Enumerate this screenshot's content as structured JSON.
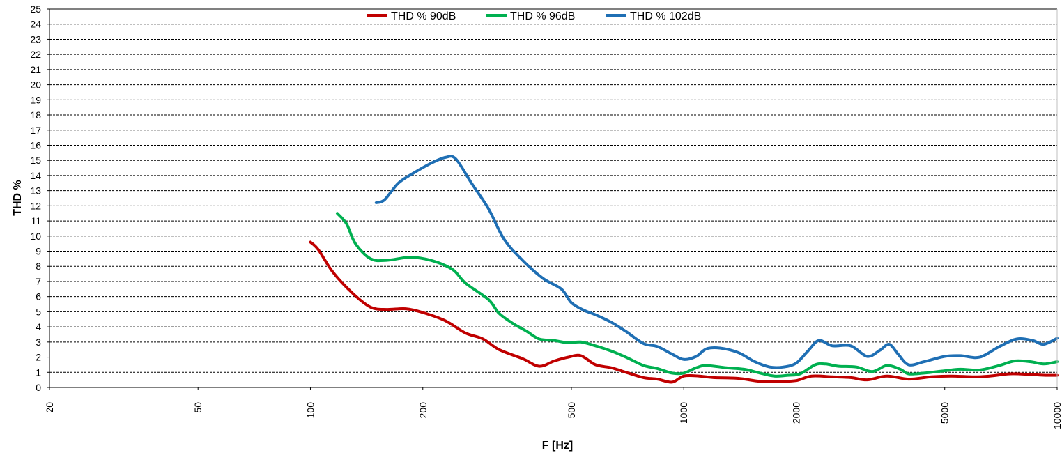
{
  "chart_data": {
    "type": "line",
    "title": "",
    "xlabel": "F [Hz]",
    "ylabel": "THD %",
    "x_scale": "log",
    "xlim": [
      20,
      10000
    ],
    "ylim": [
      0,
      25
    ],
    "x_ticks": [
      20,
      50,
      100,
      200,
      500,
      1000,
      2000,
      5000,
      10000
    ],
    "x_tick_labels": [
      "20",
      "50",
      "100",
      "200",
      "500",
      "1000",
      "2000",
      "5000",
      "10000"
    ],
    "y_ticks": [
      0,
      1,
      2,
      3,
      4,
      5,
      6,
      7,
      8,
      9,
      10,
      11,
      12,
      13,
      14,
      15,
      16,
      17,
      18,
      19,
      20,
      21,
      22,
      23,
      24,
      25
    ],
    "y_tick_labels": [
      "0",
      "1",
      "2",
      "3",
      "4",
      "5",
      "6",
      "7",
      "8",
      "9",
      "10",
      "11",
      "12",
      "13",
      "14",
      "15",
      "16",
      "17",
      "18",
      "19",
      "20",
      "21",
      "22",
      "23",
      "24",
      "25"
    ],
    "grid": "horizontal dashed",
    "legend_position": "top-center",
    "series": [
      {
        "name": "THD % 90dB",
        "color": "#c00000",
        "points": [
          [
            100,
            9.6
          ],
          [
            105,
            9.1
          ],
          [
            115,
            7.6
          ],
          [
            130,
            6.2
          ],
          [
            145,
            5.3
          ],
          [
            160,
            5.15
          ],
          [
            180,
            5.2
          ],
          [
            200,
            4.95
          ],
          [
            230,
            4.4
          ],
          [
            260,
            3.6
          ],
          [
            290,
            3.2
          ],
          [
            320,
            2.5
          ],
          [
            370,
            1.9
          ],
          [
            410,
            1.4
          ],
          [
            450,
            1.75
          ],
          [
            490,
            2.0
          ],
          [
            530,
            2.1
          ],
          [
            580,
            1.5
          ],
          [
            640,
            1.3
          ],
          [
            700,
            1.0
          ],
          [
            780,
            0.65
          ],
          [
            850,
            0.55
          ],
          [
            930,
            0.35
          ],
          [
            1000,
            0.75
          ],
          [
            1100,
            0.75
          ],
          [
            1200,
            0.65
          ],
          [
            1400,
            0.6
          ],
          [
            1600,
            0.4
          ],
          [
            1800,
            0.4
          ],
          [
            2000,
            0.45
          ],
          [
            2200,
            0.75
          ],
          [
            2500,
            0.7
          ],
          [
            2800,
            0.65
          ],
          [
            3100,
            0.5
          ],
          [
            3500,
            0.75
          ],
          [
            4000,
            0.55
          ],
          [
            4600,
            0.7
          ],
          [
            5200,
            0.75
          ],
          [
            6000,
            0.7
          ],
          [
            6600,
            0.75
          ],
          [
            7500,
            0.9
          ],
          [
            8500,
            0.85
          ],
          [
            9300,
            0.8
          ],
          [
            10000,
            0.8
          ]
        ]
      },
      {
        "name": "THD % 96dB",
        "color": "#00b050",
        "points": [
          [
            118,
            11.5
          ],
          [
            125,
            10.8
          ],
          [
            132,
            9.5
          ],
          [
            145,
            8.5
          ],
          [
            160,
            8.4
          ],
          [
            185,
            8.6
          ],
          [
            210,
            8.4
          ],
          [
            240,
            7.8
          ],
          [
            260,
            6.9
          ],
          [
            300,
            5.8
          ],
          [
            320,
            4.9
          ],
          [
            350,
            4.2
          ],
          [
            380,
            3.7
          ],
          [
            410,
            3.2
          ],
          [
            450,
            3.1
          ],
          [
            490,
            2.95
          ],
          [
            530,
            3.0
          ],
          [
            580,
            2.75
          ],
          [
            640,
            2.4
          ],
          [
            700,
            2.0
          ],
          [
            780,
            1.45
          ],
          [
            850,
            1.25
          ],
          [
            930,
            0.95
          ],
          [
            1000,
            0.95
          ],
          [
            1080,
            1.3
          ],
          [
            1150,
            1.45
          ],
          [
            1300,
            1.3
          ],
          [
            1450,
            1.2
          ],
          [
            1600,
            0.95
          ],
          [
            1750,
            0.75
          ],
          [
            1900,
            0.8
          ],
          [
            2050,
            0.9
          ],
          [
            2250,
            1.5
          ],
          [
            2400,
            1.55
          ],
          [
            2600,
            1.4
          ],
          [
            2900,
            1.35
          ],
          [
            3200,
            1.05
          ],
          [
            3500,
            1.45
          ],
          [
            3800,
            1.2
          ],
          [
            4000,
            0.9
          ],
          [
            4400,
            0.95
          ],
          [
            5000,
            1.1
          ],
          [
            5500,
            1.2
          ],
          [
            6200,
            1.15
          ],
          [
            7000,
            1.45
          ],
          [
            7700,
            1.75
          ],
          [
            8500,
            1.7
          ],
          [
            9200,
            1.55
          ],
          [
            10000,
            1.7
          ]
        ]
      },
      {
        "name": "THD % 102dB",
        "color": "#1f6fb4",
        "points": [
          [
            150,
            12.2
          ],
          [
            158,
            12.4
          ],
          [
            172,
            13.5
          ],
          [
            190,
            14.2
          ],
          [
            210,
            14.8
          ],
          [
            230,
            15.2
          ],
          [
            245,
            15.1
          ],
          [
            270,
            13.5
          ],
          [
            300,
            11.8
          ],
          [
            330,
            9.8
          ],
          [
            370,
            8.4
          ],
          [
            420,
            7.2
          ],
          [
            470,
            6.5
          ],
          [
            500,
            5.6
          ],
          [
            540,
            5.1
          ],
          [
            580,
            4.8
          ],
          [
            640,
            4.3
          ],
          [
            700,
            3.7
          ],
          [
            780,
            2.9
          ],
          [
            850,
            2.7
          ],
          [
            930,
            2.2
          ],
          [
            1000,
            1.85
          ],
          [
            1080,
            2.05
          ],
          [
            1150,
            2.55
          ],
          [
            1250,
            2.6
          ],
          [
            1400,
            2.3
          ],
          [
            1550,
            1.7
          ],
          [
            1700,
            1.35
          ],
          [
            1850,
            1.35
          ],
          [
            2000,
            1.6
          ],
          [
            2150,
            2.4
          ],
          [
            2300,
            3.1
          ],
          [
            2500,
            2.75
          ],
          [
            2800,
            2.75
          ],
          [
            3100,
            2.05
          ],
          [
            3350,
            2.45
          ],
          [
            3550,
            2.85
          ],
          [
            3750,
            2.2
          ],
          [
            4000,
            1.5
          ],
          [
            4400,
            1.7
          ],
          [
            5000,
            2.05
          ],
          [
            5500,
            2.1
          ],
          [
            6200,
            2.0
          ],
          [
            7000,
            2.7
          ],
          [
            7800,
            3.2
          ],
          [
            8600,
            3.1
          ],
          [
            9200,
            2.85
          ],
          [
            10000,
            3.25
          ]
        ]
      }
    ]
  }
}
